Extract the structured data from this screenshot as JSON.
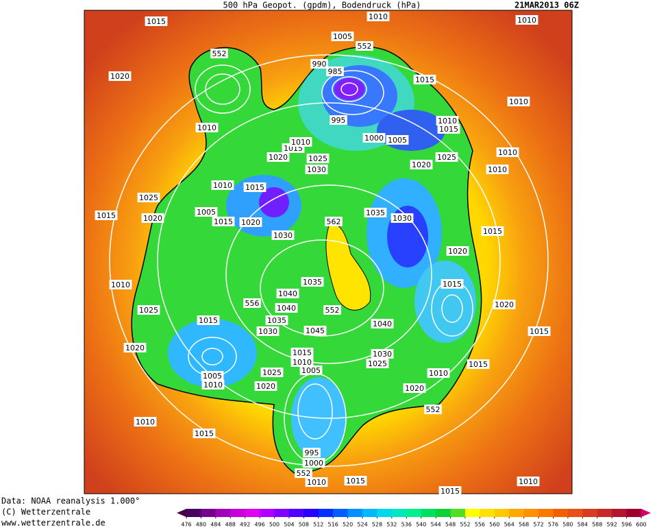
{
  "header": {
    "title": "500 hPa Geopot. (gpdm), Bodendruck (hPa)",
    "date": "21MAR2013 06Z"
  },
  "footer": [
    "Data: NOAA reanalysis 1.000°",
    "(C) Wetterzentrale",
    "www.wetterzentrale.de"
  ],
  "isobar_labels": [
    "1015",
    "1010",
    "1010",
    "1005",
    "552",
    "552",
    "990",
    "985",
    "1020",
    "1015",
    "1010",
    "995",
    "1010",
    "1015",
    "1010",
    "1000",
    "1005",
    "1015",
    "1010",
    "1020",
    "1025",
    "1030",
    "1020",
    "1025",
    "1010",
    "1010",
    "1010",
    "1015",
    "1025",
    "1005",
    "1015",
    "1020",
    "1015",
    "1020",
    "562",
    "1035",
    "1030",
    "1015",
    "1030",
    "1020",
    "1010",
    "1035",
    "1015",
    "1040",
    "556",
    "1040",
    "552",
    "1025",
    "1015",
    "1035",
    "1040",
    "1030",
    "1045",
    "1020",
    "1015",
    "1020",
    "1015",
    "1010",
    "1005",
    "1030",
    "1025",
    "1015",
    "1025",
    "1005",
    "1010",
    "1020",
    "1010",
    "1020",
    "552",
    "1010",
    "1015",
    "995",
    "1000",
    "552",
    "1010",
    "1015",
    "1010",
    "1015"
  ],
  "colorbar": {
    "ticks": [
      476,
      480,
      484,
      488,
      492,
      496,
      500,
      504,
      508,
      512,
      516,
      520,
      524,
      528,
      532,
      536,
      540,
      544,
      548,
      552,
      556,
      560,
      564,
      568,
      572,
      576,
      580,
      584,
      588,
      592,
      596,
      600
    ],
    "colors": [
      "#4a0060",
      "#760090",
      "#a000b8",
      "#c800d8",
      "#e000f0",
      "#b000ff",
      "#8000ff",
      "#5000ff",
      "#2800ff",
      "#0030ff",
      "#0060ff",
      "#0090ff",
      "#00b8ff",
      "#00d8f0",
      "#00e8c0",
      "#00f090",
      "#00e060",
      "#10d038",
      "#50e020",
      "#ffff00",
      "#ffe000",
      "#ffc800",
      "#ffa800",
      "#ff9000",
      "#f87800",
      "#f06000",
      "#e85018",
      "#d83c20",
      "#c82828",
      "#b01830",
      "#a00030"
    ],
    "end_colors": [
      "#4a0040",
      "#d0006a"
    ]
  }
}
